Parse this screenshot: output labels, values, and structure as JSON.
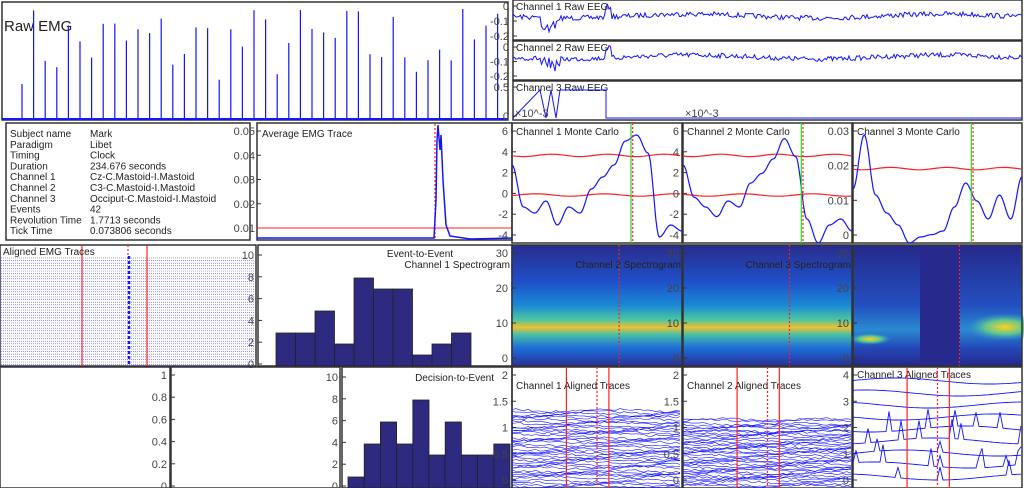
{
  "colors": {
    "trace": "#1414ff",
    "threshold": "#ff2020",
    "onset": "#22dd22",
    "bar": "#2e2a80",
    "axis": "#333333"
  },
  "raw_emg": {
    "title": "Raw EMG"
  },
  "raw_eeg": [
    {
      "title": "Channel 1 Raw EEG",
      "yticks": [
        "0",
        "-0.1",
        "-0.2"
      ]
    },
    {
      "title": "Channel 2 Raw EEG",
      "yticks": [
        "0",
        "-0.1",
        "-0.2"
      ]
    },
    {
      "title": "Channel 3 Raw EEG",
      "yticks": [
        "0.5",
        "0"
      ]
    }
  ],
  "exponent_labels": [
    "×10^-3",
    "×10^-3"
  ],
  "info": {
    "rows": [
      {
        "label": "Subject name",
        "value": "Mark"
      },
      {
        "label": "Paradigm",
        "value": "Libet"
      },
      {
        "label": "Timing",
        "value": "Clock"
      },
      {
        "label": "Duration",
        "value": "234.676 seconds"
      },
      {
        "label": "Channel 1",
        "value": "Cz-C.Mastoid-I.Mastoid"
      },
      {
        "label": "Channel 2",
        "value": "C3-C.Mastoid-I.Mastoid"
      },
      {
        "label": "Channel 3",
        "value": "Occiput-C.Mastoid-I.Mastoid"
      },
      {
        "label": "Events",
        "value": "42"
      },
      {
        "label": "Revolution Time",
        "value": "1.7713 seconds"
      },
      {
        "label": "Tick Time",
        "value": "0.073806 seconds"
      }
    ]
  },
  "average_emg": {
    "title": "Average EMG Trace",
    "yticks": [
      "0.05",
      "0.04",
      "0.03",
      "0.02",
      "0.01"
    ]
  },
  "monte_carlo": [
    {
      "title": "Channel 1 Monte Carlo",
      "yticks": [
        "6",
        "4",
        "2",
        "0",
        "-2",
        "-4"
      ]
    },
    {
      "title": "Channel 2 Monte Carlo",
      "yticks": [
        "6",
        "4",
        "2",
        "0",
        "-2",
        "-4"
      ]
    },
    {
      "title": "Channel 3 Monte Carlo",
      "yticks": [
        "0.03",
        "0.02",
        "0.01",
        "0"
      ]
    }
  ],
  "aligned_emg": {
    "title": "Aligned EMG Traces"
  },
  "spectrograms": [
    {
      "title": "Channel 1 Spectrogram",
      "yticks": [
        "30",
        "20",
        "10",
        "0"
      ]
    },
    {
      "title": "Channel 2 Spectrogram",
      "yticks": [
        "30",
        "20",
        "10",
        "0"
      ]
    },
    {
      "title": "Channel 3 Spectrogram",
      "yticks": [
        "30",
        "20",
        "10",
        "0"
      ]
    }
  ],
  "empty_axes": {
    "yticks": [
      "1",
      "0.8",
      "0.6",
      "0.4",
      "0.2",
      "0"
    ]
  },
  "aligned_traces": [
    {
      "title": "Channel 1 Aligned Traces",
      "yticks": [
        "2",
        "1.5",
        "1",
        "0.5",
        "0"
      ]
    },
    {
      "title": "Channel 2 Aligned Traces",
      "yticks": [
        "2",
        "1.5",
        "1",
        "0.5",
        "0"
      ]
    },
    {
      "title": "Channel 3 Aligned Traces",
      "yticks": [
        "4",
        "3",
        "2",
        "1",
        "0"
      ]
    }
  ],
  "chart_data": [
    {
      "type": "bar",
      "title": "Event-to-Event",
      "values": [
        3,
        3,
        5,
        2,
        8,
        7,
        7,
        1,
        2,
        3
      ],
      "ylim": [
        0,
        11
      ],
      "yticks": [
        "10",
        "8",
        "6",
        "4",
        "2",
        "0"
      ]
    },
    {
      "type": "bar",
      "title": "Decision-to-Event",
      "values": [
        1,
        4,
        6,
        4,
        8,
        3,
        6,
        3,
        3,
        4
      ],
      "ylim": [
        0,
        11
      ],
      "yticks": [
        "10",
        "8",
        "6",
        "4",
        "2",
        "0"
      ]
    }
  ]
}
